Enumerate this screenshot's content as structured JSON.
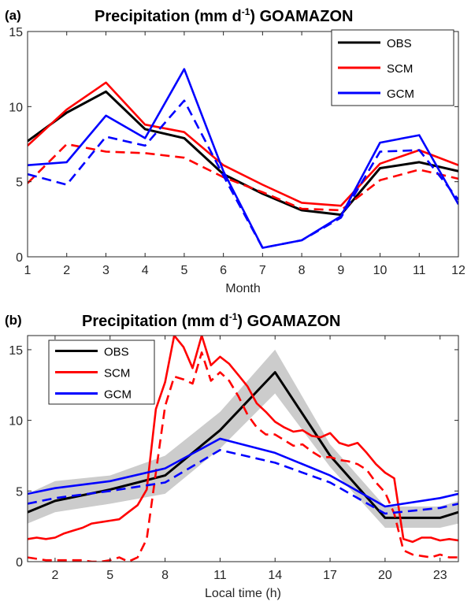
{
  "chart_data": [
    {
      "panel_label": "(a)",
      "type": "line",
      "title_main": "Precipitation (mm d",
      "title_sup": "-1",
      "title_rest": ") GOAMAZON",
      "xlabel": "Month",
      "ylabel": "",
      "xlim": [
        1,
        12
      ],
      "ylim": [
        0,
        15
      ],
      "xticks": [
        1,
        2,
        3,
        4,
        5,
        6,
        7,
        8,
        9,
        10,
        11,
        12
      ],
      "yticks": [
        0,
        5,
        10,
        15
      ],
      "legend_position": "top-right",
      "legend": [
        "OBS",
        "SCM",
        "GCM"
      ],
      "x": [
        1,
        2,
        3,
        4,
        5,
        6,
        7,
        8,
        9,
        10,
        11,
        12
      ],
      "series": [
        {
          "name": "OBS",
          "color": "#000000",
          "style": "solid",
          "values": [
            7.7,
            9.6,
            11.0,
            8.5,
            7.9,
            5.5,
            4.2,
            3.1,
            2.8,
            5.9,
            6.3,
            5.7
          ]
        },
        {
          "name": "SCM",
          "color": "#ff0000",
          "style": "solid",
          "values": [
            7.4,
            9.8,
            11.6,
            8.8,
            8.3,
            6.1,
            4.8,
            3.6,
            3.4,
            6.2,
            7.1,
            6.1
          ]
        },
        {
          "name": "SCM",
          "color": "#ff0000",
          "style": "dashed",
          "legend": false,
          "values": [
            4.9,
            7.5,
            7.0,
            6.9,
            6.6,
            5.3,
            4.3,
            3.2,
            3.1,
            5.1,
            5.8,
            5.2
          ]
        },
        {
          "name": "GCM",
          "color": "#0000ff",
          "style": "solid",
          "values": [
            6.1,
            6.3,
            9.4,
            7.9,
            12.5,
            5.7,
            0.6,
            1.1,
            2.7,
            7.6,
            8.1,
            3.5
          ]
        },
        {
          "name": "GCM",
          "color": "#0000ff",
          "style": "dashed",
          "legend": false,
          "values": [
            5.5,
            4.8,
            8.0,
            7.4,
            10.4,
            5.4,
            0.6,
            1.1,
            2.6,
            7.0,
            7.1,
            3.8
          ]
        }
      ]
    },
    {
      "panel_label": "(b)",
      "type": "line",
      "title_main": "Precipitation (mm d",
      "title_sup": "-1",
      "title_rest": ") GOAMAZON",
      "xlabel": "Local time (h)",
      "ylabel": "",
      "xlim": [
        0.5,
        24
      ],
      "ylim": [
        0,
        16
      ],
      "xticks": [
        2,
        5,
        8,
        11,
        14,
        17,
        20,
        23
      ],
      "yticks": [
        0,
        5,
        10,
        15
      ],
      "legend_position": "top-left",
      "legend": [
        "OBS",
        "SCM",
        "GCM"
      ],
      "shaded_band": {
        "color": "#cccccc",
        "x": [
          0.5,
          2,
          5,
          8,
          11,
          14,
          17,
          20,
          23,
          24
        ],
        "lower": [
          2.7,
          3.5,
          4.1,
          4.8,
          8.0,
          11.9,
          6.7,
          2.4,
          2.4,
          2.7
        ],
        "upper": [
          4.8,
          5.7,
          6.1,
          7.5,
          10.6,
          15.0,
          8.3,
          3.9,
          3.9,
          4.3
        ]
      },
      "series": [
        {
          "name": "OBS",
          "color": "#000000",
          "style": "solid",
          "x": [
            0.5,
            2,
            5,
            8,
            11,
            14,
            17,
            20,
            23,
            24
          ],
          "values": [
            3.5,
            4.3,
            5.1,
            6.1,
            9.3,
            13.4,
            7.5,
            3.1,
            3.1,
            3.5
          ]
        },
        {
          "name": "SCM",
          "color": "#ff0000",
          "style": "solid",
          "x": [
            0.5,
            1,
            1.5,
            2,
            2.5,
            3,
            3.5,
            4,
            4.5,
            5,
            5.5,
            6,
            6.5,
            7,
            7.5,
            8,
            8.5,
            9,
            9.5,
            10,
            10.5,
            11,
            11.5,
            12,
            12.5,
            13,
            13.5,
            14,
            14.5,
            15,
            15.5,
            16,
            16.5,
            17,
            17.5,
            18,
            18.5,
            19,
            19.5,
            20,
            20.5,
            21,
            21.5,
            22,
            22.5,
            23,
            23.5,
            24
          ],
          "values": [
            1.6,
            1.7,
            1.6,
            1.7,
            2.0,
            2.2,
            2.4,
            2.7,
            2.8,
            2.9,
            3.0,
            3.5,
            4.0,
            5.1,
            10.8,
            12.7,
            16.0,
            15.2,
            13.7,
            16.0,
            13.9,
            14.5,
            14.0,
            13.2,
            12.4,
            11.2,
            10.6,
            9.9,
            9.5,
            9.2,
            9.3,
            8.9,
            8.8,
            9.1,
            8.4,
            8.2,
            8.4,
            7.7,
            6.9,
            6.3,
            5.9,
            1.6,
            1.4,
            1.7,
            1.7,
            1.5,
            1.6,
            1.5
          ]
        },
        {
          "name": "SCM",
          "color": "#ff0000",
          "style": "dashed",
          "legend": false,
          "x": [
            0.5,
            1,
            1.5,
            2,
            2.5,
            3,
            3.5,
            4,
            4.5,
            5,
            5.5,
            6,
            6.5,
            7,
            7.5,
            8,
            8.5,
            9,
            9.5,
            10,
            10.5,
            11,
            11.5,
            12,
            12.5,
            13,
            13.5,
            14,
            14.5,
            15,
            15.5,
            16,
            16.5,
            17,
            17.5,
            18,
            18.5,
            19,
            19.5,
            20,
            20.5,
            21,
            21.5,
            22,
            22.5,
            23,
            23.5,
            24
          ],
          "values": [
            0.3,
            0.2,
            0.1,
            0.1,
            0.1,
            0.1,
            0.1,
            0.0,
            0.0,
            0.1,
            0.3,
            0.0,
            0.3,
            1.6,
            6.3,
            11.0,
            13.1,
            12.9,
            12.6,
            14.8,
            12.8,
            13.4,
            12.8,
            11.7,
            10.4,
            9.5,
            9.0,
            9.0,
            8.6,
            8.2,
            8.3,
            7.8,
            7.4,
            7.4,
            7.2,
            7.1,
            6.9,
            6.5,
            5.6,
            4.9,
            3.4,
            0.8,
            0.5,
            0.4,
            0.3,
            0.5,
            0.3,
            0.3
          ]
        },
        {
          "name": "GCM",
          "color": "#0000ff",
          "style": "solid",
          "x": [
            0.5,
            2,
            5,
            8,
            11,
            14,
            17,
            20,
            23,
            24
          ],
          "values": [
            4.8,
            5.2,
            5.7,
            6.6,
            8.7,
            7.7,
            6.1,
            3.9,
            4.5,
            4.8
          ]
        },
        {
          "name": "GCM",
          "color": "#0000ff",
          "style": "dashed",
          "legend": false,
          "x": [
            0.5,
            2,
            5,
            8,
            11,
            14,
            17,
            20,
            23,
            24
          ],
          "values": [
            4.1,
            4.5,
            5.0,
            5.6,
            7.9,
            7.0,
            5.6,
            3.4,
            3.8,
            4.1
          ]
        }
      ]
    }
  ]
}
